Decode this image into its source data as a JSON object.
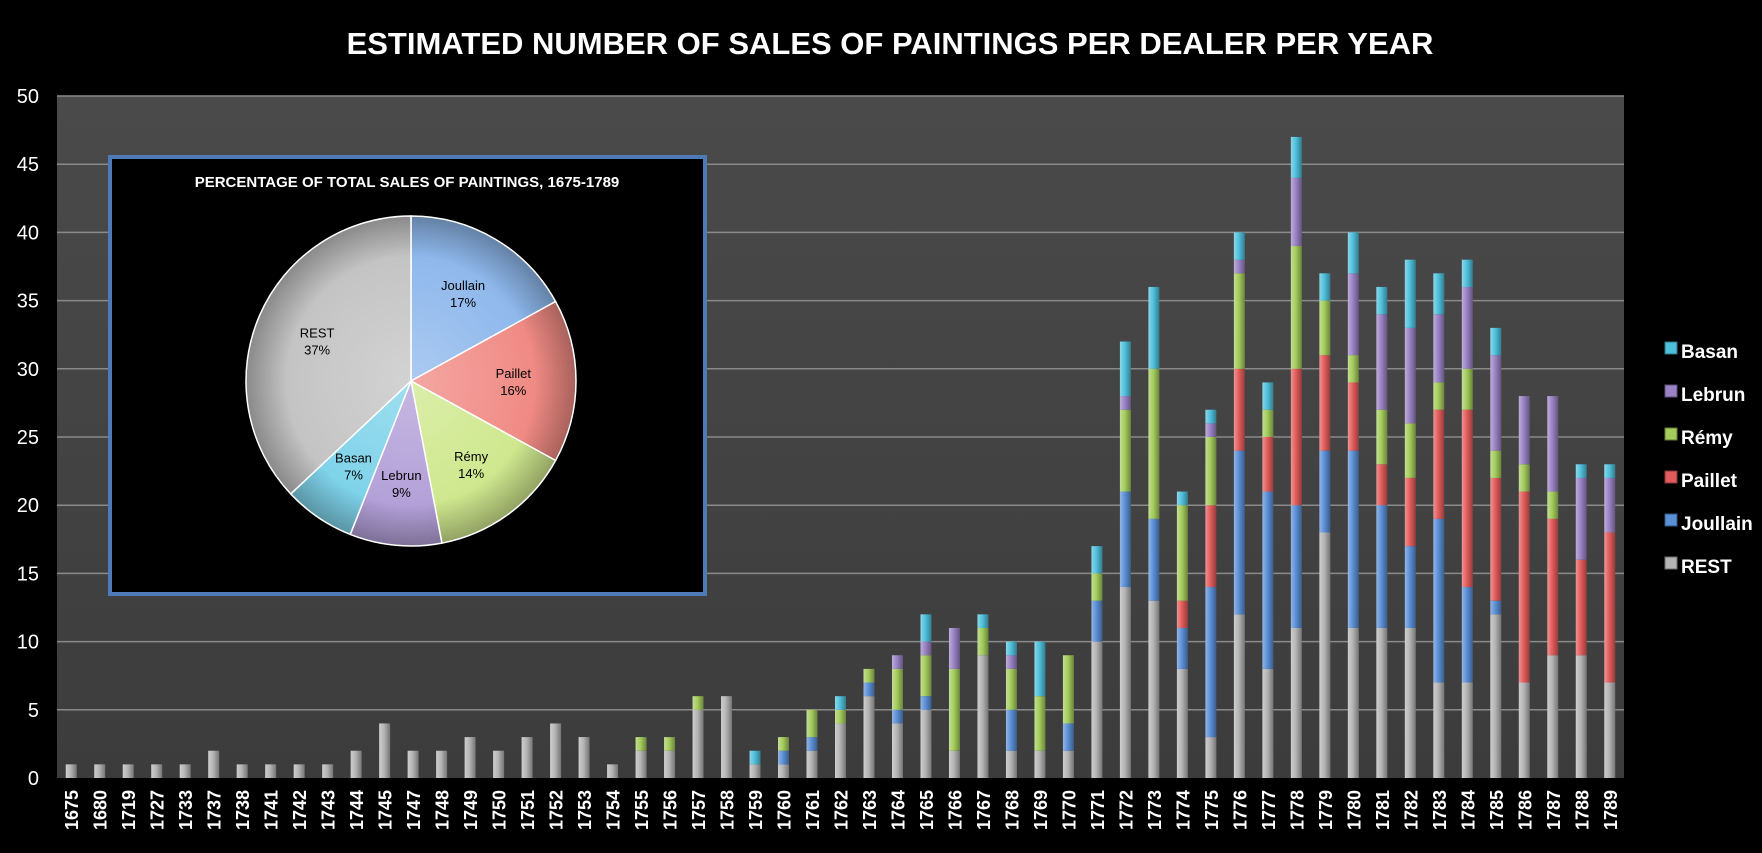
{
  "chart_data": [
    {
      "type": "bar",
      "stacked": true,
      "title": "ESTIMATED NUMBER OF SALES OF PAINTINGS PER DEALER PER YEAR",
      "xlabel": "",
      "ylabel": "",
      "ylim": [
        0,
        50
      ],
      "yticks": [
        0,
        5,
        10,
        15,
        20,
        25,
        30,
        35,
        40,
        45,
        50
      ],
      "grid": true,
      "legend_position": "right",
      "categories": [
        "1675",
        "1680",
        "1719",
        "1727",
        "1733",
        "1737",
        "1738",
        "1741",
        "1742",
        "1743",
        "1744",
        "1745",
        "1747",
        "1748",
        "1749",
        "1750",
        "1751",
        "1752",
        "1753",
        "1754",
        "1755",
        "1756",
        "1757",
        "1758",
        "1759",
        "1760",
        "1761",
        "1762",
        "1763",
        "1764",
        "1765",
        "1766",
        "1767",
        "1768",
        "1769",
        "1770",
        "1771",
        "1772",
        "1773",
        "1774",
        "1775",
        "1776",
        "1777",
        "1778",
        "1779",
        "1780",
        "1781",
        "1782",
        "1783",
        "1784",
        "1785",
        "1786",
        "1787",
        "1788",
        "1789"
      ],
      "series": [
        {
          "name": "REST",
          "color": "#b4b4b4",
          "values": [
            1,
            1,
            1,
            1,
            1,
            2,
            1,
            1,
            1,
            1,
            2,
            4,
            2,
            2,
            3,
            2,
            3,
            4,
            3,
            1,
            2,
            2,
            5,
            6,
            1,
            1,
            2,
            4,
            6,
            4,
            5,
            2,
            9,
            2,
            2,
            2,
            10,
            14,
            13,
            8,
            3,
            12,
            8,
            11,
            18,
            11,
            11,
            11,
            7,
            7,
            12,
            7,
            9,
            9,
            7
          ]
        },
        {
          "name": "Joullain",
          "color": "#5b8fd6",
          "values": [
            0,
            0,
            0,
            0,
            0,
            0,
            0,
            0,
            0,
            0,
            0,
            0,
            0,
            0,
            0,
            0,
            0,
            0,
            0,
            0,
            0,
            0,
            0,
            0,
            0,
            1,
            1,
            0,
            1,
            1,
            1,
            0,
            0,
            3,
            0,
            2,
            3,
            7,
            6,
            3,
            11,
            12,
            13,
            9,
            6,
            13,
            9,
            6,
            12,
            7,
            1,
            0,
            0,
            0,
            0
          ]
        },
        {
          "name": "Paillet",
          "color": "#e35c5c",
          "values": [
            0,
            0,
            0,
            0,
            0,
            0,
            0,
            0,
            0,
            0,
            0,
            0,
            0,
            0,
            0,
            0,
            0,
            0,
            0,
            0,
            0,
            0,
            0,
            0,
            0,
            0,
            0,
            0,
            0,
            0,
            0,
            0,
            0,
            0,
            0,
            0,
            0,
            0,
            0,
            2,
            6,
            6,
            4,
            10,
            7,
            5,
            3,
            5,
            8,
            13,
            9,
            14,
            10,
            7,
            11
          ]
        },
        {
          "name": "Rémy",
          "color": "#a4cc5c",
          "values": [
            0,
            0,
            0,
            0,
            0,
            0,
            0,
            0,
            0,
            0,
            0,
            0,
            0,
            0,
            0,
            0,
            0,
            0,
            0,
            0,
            1,
            1,
            1,
            0,
            0,
            1,
            2,
            1,
            1,
            3,
            3,
            6,
            2,
            3,
            4,
            5,
            2,
            6,
            11,
            7,
            5,
            7,
            2,
            9,
            4,
            2,
            4,
            4,
            2,
            3,
            2,
            2,
            2,
            0,
            0
          ]
        },
        {
          "name": "Lebrun",
          "color": "#9a82c4",
          "values": [
            0,
            0,
            0,
            0,
            0,
            0,
            0,
            0,
            0,
            0,
            0,
            0,
            0,
            0,
            0,
            0,
            0,
            0,
            0,
            0,
            0,
            0,
            0,
            0,
            0,
            0,
            0,
            0,
            0,
            1,
            1,
            3,
            0,
            1,
            0,
            0,
            0,
            1,
            0,
            0,
            1,
            1,
            0,
            5,
            0,
            6,
            7,
            7,
            5,
            6,
            7,
            5,
            7,
            6,
            4
          ]
        },
        {
          "name": "Basan",
          "color": "#4fc0dc",
          "values": [
            0,
            0,
            0,
            0,
            0,
            0,
            0,
            0,
            0,
            0,
            0,
            0,
            0,
            0,
            0,
            0,
            0,
            0,
            0,
            0,
            0,
            0,
            0,
            0,
            1,
            0,
            0,
            1,
            0,
            0,
            2,
            0,
            1,
            1,
            4,
            0,
            2,
            4,
            6,
            1,
            1,
            2,
            2,
            3,
            2,
            3,
            2,
            5,
            3,
            2,
            2,
            0,
            0,
            1,
            1
          ]
        }
      ]
    },
    {
      "type": "pie",
      "title": "PERCENTAGE OF TOTAL SALES OF PAINTINGS, 1675-1789",
      "slices": [
        {
          "label": "Joullain",
          "value": 17,
          "text": "17%",
          "color": "#8fb8ec"
        },
        {
          "label": "Paillet",
          "value": 16,
          "text": "16%",
          "color": "#f08a84"
        },
        {
          "label": "Rémy",
          "value": 14,
          "text": "14%",
          "color": "#cfe88e"
        },
        {
          "label": "Lebrun",
          "value": 9,
          "text": "9%",
          "color": "#b3a0d8"
        },
        {
          "label": "Basan",
          "value": 7,
          "text": "7%",
          "color": "#7fd3ea"
        },
        {
          "label": "REST",
          "value": 37,
          "text": "37%",
          "color": "#c4c4c4"
        }
      ]
    }
  ]
}
